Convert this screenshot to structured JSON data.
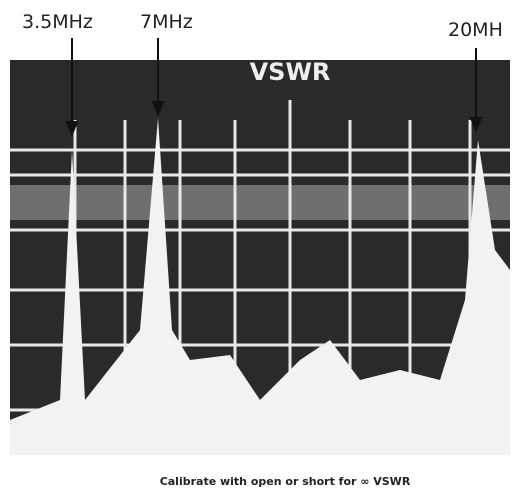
{
  "markers": [
    "3.5MHz",
    "7MHz",
    "20MH"
  ],
  "screen": {
    "title": "VSWR",
    "caption": "Calibrate with open or short for ∞ VSWR"
  }
}
